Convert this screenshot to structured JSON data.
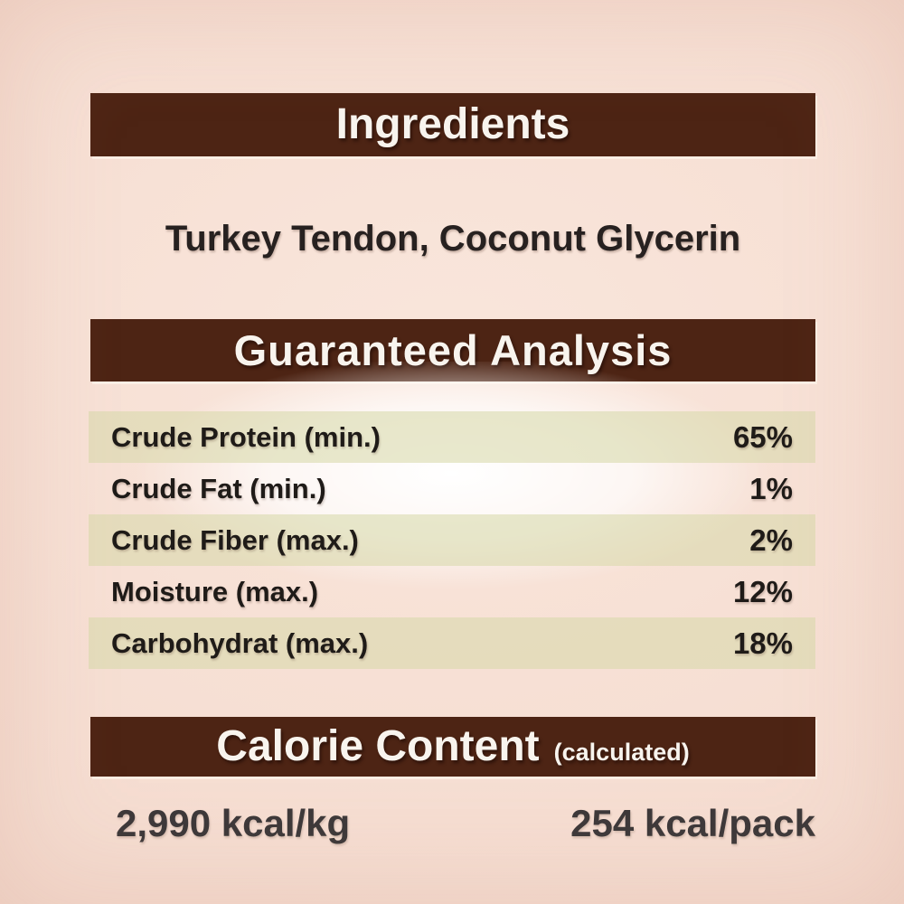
{
  "label": {
    "ingredients": {
      "heading": "Ingredients",
      "items": "Turkey Tendon, Coconut Glycerin"
    },
    "guaranteed_analysis": {
      "heading": "Guaranteed Analysis",
      "rows": [
        {
          "name": "Crude Protein (min.)",
          "value": "65%"
        },
        {
          "name": "Crude Fat (min.)",
          "value": "1%"
        },
        {
          "name": "Crude Fiber (max.)",
          "value": "2%"
        },
        {
          "name": "Moisture (max.)",
          "value": "12%"
        },
        {
          "name": "Carbohydrat (max.)",
          "value": "18%"
        }
      ]
    },
    "calorie_content": {
      "heading": "Calorie Content",
      "qualifier": "(calculated)",
      "per_kg": "2,990 kcal/kg",
      "per_pack": "254 kcal/pack"
    },
    "colors": {
      "banner_brown": "#4d2414",
      "background_peach": "#f5dcd0",
      "row_olive": "#e5e3c8",
      "banner_text": "#f8f4ee",
      "body_text": "#1f1b18"
    }
  }
}
